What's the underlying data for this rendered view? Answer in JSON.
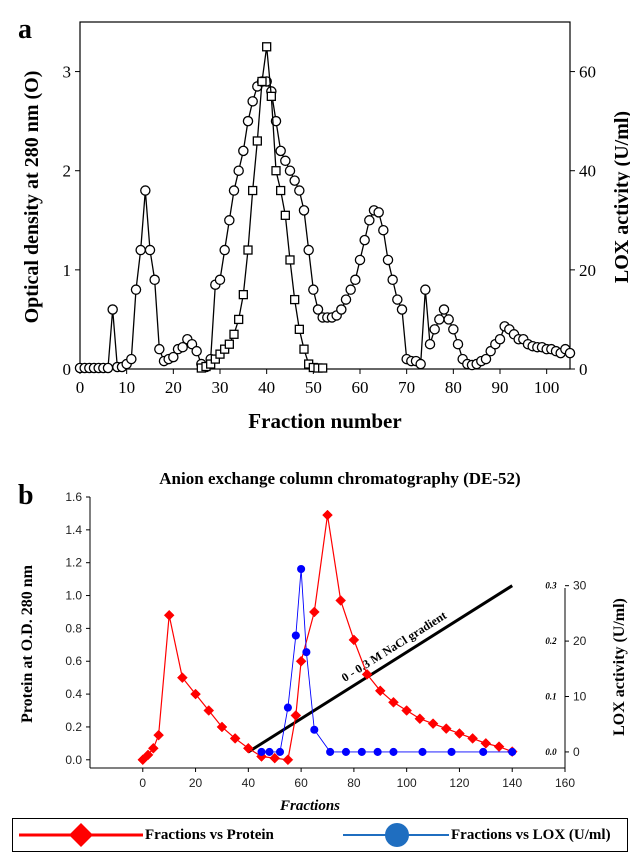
{
  "chart_data": [
    {
      "panel_label": "a",
      "type": "line",
      "xlabel": "Fraction number",
      "ylabel": "Optical density at 280 nm (O)",
      "y2label": "LOX activity (U/ml)",
      "xlim": [
        0,
        105
      ],
      "ylim": [
        0,
        3.5
      ],
      "y2lim": [
        0,
        70
      ],
      "x_ticks": [
        0,
        10,
        20,
        30,
        40,
        50,
        60,
        70,
        80,
        90,
        100
      ],
      "y_ticks": [
        0,
        1,
        2,
        3
      ],
      "y2_ticks": [
        0,
        20,
        40,
        60
      ],
      "series": [
        {
          "axis": "left",
          "marker": "circle",
          "color": "#000000",
          "points": [
            [
              0,
              0.01
            ],
            [
              1,
              0.01
            ],
            [
              2,
              0.01
            ],
            [
              3,
              0.01
            ],
            [
              4,
              0.01
            ],
            [
              5,
              0.01
            ],
            [
              6,
              0.01
            ],
            [
              7,
              0.6
            ],
            [
              8,
              0.02
            ],
            [
              9,
              0.02
            ],
            [
              10,
              0.05
            ],
            [
              11,
              0.1
            ],
            [
              12,
              0.8
            ],
            [
              13,
              1.2
            ],
            [
              14,
              1.8
            ],
            [
              15,
              1.2
            ],
            [
              16,
              0.9
            ],
            [
              17,
              0.2
            ],
            [
              18,
              0.08
            ],
            [
              19,
              0.1
            ],
            [
              20,
              0.12
            ],
            [
              21,
              0.2
            ],
            [
              22,
              0.22
            ],
            [
              23,
              0.3
            ],
            [
              24,
              0.25
            ],
            [
              25,
              0.18
            ],
            [
              26,
              0.05
            ],
            [
              27,
              0.02
            ],
            [
              28,
              0.1
            ],
            [
              29,
              0.85
            ],
            [
              30,
              0.9
            ],
            [
              31,
              1.2
            ],
            [
              32,
              1.5
            ],
            [
              33,
              1.8
            ],
            [
              34,
              2.0
            ],
            [
              35,
              2.2
            ],
            [
              36,
              2.5
            ],
            [
              37,
              2.7
            ],
            [
              38,
              2.85
            ],
            [
              39,
              2.9
            ],
            [
              40,
              2.9
            ],
            [
              41,
              2.8
            ],
            [
              42,
              2.5
            ],
            [
              43,
              2.2
            ],
            [
              44,
              2.1
            ],
            [
              45,
              2.0
            ],
            [
              46,
              1.9
            ],
            [
              47,
              1.8
            ],
            [
              48,
              1.6
            ],
            [
              49,
              1.2
            ],
            [
              50,
              0.8
            ],
            [
              51,
              0.6
            ],
            [
              52,
              0.52
            ],
            [
              53,
              0.52
            ],
            [
              54,
              0.52
            ],
            [
              55,
              0.54
            ],
            [
              56,
              0.6
            ],
            [
              57,
              0.7
            ],
            [
              58,
              0.8
            ],
            [
              59,
              0.9
            ],
            [
              60,
              1.1
            ],
            [
              61,
              1.3
            ],
            [
              62,
              1.5
            ],
            [
              63,
              1.6
            ],
            [
              64,
              1.58
            ],
            [
              65,
              1.4
            ],
            [
              66,
              1.1
            ],
            [
              67,
              0.9
            ],
            [
              68,
              0.7
            ],
            [
              69,
              0.6
            ],
            [
              70,
              0.1
            ],
            [
              71,
              0.08
            ],
            [
              72,
              0.08
            ],
            [
              73,
              0.05
            ],
            [
              74,
              0.8
            ],
            [
              75,
              0.25
            ],
            [
              76,
              0.4
            ],
            [
              77,
              0.5
            ],
            [
              78,
              0.6
            ],
            [
              79,
              0.5
            ],
            [
              80,
              0.4
            ],
            [
              81,
              0.25
            ],
            [
              82,
              0.1
            ],
            [
              83,
              0.05
            ],
            [
              84,
              0.04
            ],
            [
              85,
              0.05
            ],
            [
              86,
              0.08
            ],
            [
              87,
              0.1
            ],
            [
              88,
              0.18
            ],
            [
              89,
              0.25
            ],
            [
              90,
              0.3
            ],
            [
              91,
              0.43
            ],
            [
              92,
              0.4
            ],
            [
              93,
              0.35
            ],
            [
              94,
              0.3
            ],
            [
              95,
              0.3
            ],
            [
              96,
              0.25
            ],
            [
              97,
              0.23
            ],
            [
              98,
              0.22
            ],
            [
              99,
              0.22
            ],
            [
              100,
              0.2
            ],
            [
              101,
              0.2
            ],
            [
              102,
              0.18
            ],
            [
              103,
              0.16
            ],
            [
              104,
              0.2
            ],
            [
              105,
              0.16
            ]
          ]
        },
        {
          "axis": "right",
          "marker": "square",
          "color": "#000000",
          "points": [
            [
              26,
              0.2
            ],
            [
              27,
              0.5
            ],
            [
              28,
              1
            ],
            [
              29,
              2
            ],
            [
              30,
              3
            ],
            [
              31,
              4
            ],
            [
              32,
              5
            ],
            [
              33,
              7
            ],
            [
              34,
              10
            ],
            [
              35,
              15
            ],
            [
              36,
              24
            ],
            [
              37,
              36
            ],
            [
              38,
              46
            ],
            [
              39,
              58
            ],
            [
              40,
              65
            ],
            [
              41,
              55
            ],
            [
              42,
              40
            ],
            [
              43,
              36
            ],
            [
              44,
              31
            ],
            [
              45,
              22
            ],
            [
              46,
              14
            ],
            [
              47,
              8
            ],
            [
              48,
              4
            ],
            [
              49,
              1
            ],
            [
              50,
              0.3
            ],
            [
              51,
              0.2
            ],
            [
              52,
              0.2
            ]
          ]
        }
      ]
    },
    {
      "panel_label": "b",
      "type": "line",
      "title": "Anion exchange column chromatography (DE-52)",
      "xlabel": "Fractions",
      "ylabel": "Protein at O.D. 280 nm",
      "y2label": "LOX activity (U/ml)",
      "xlim": [
        -20,
        160
      ],
      "ylim": [
        -0.05,
        1.6
      ],
      "y2lim": [
        -2.9,
        46
      ],
      "x_ticks": [
        0,
        20,
        40,
        60,
        80,
        100,
        120,
        140,
        160
      ],
      "y_ticks": [
        0.0,
        0.2,
        0.4,
        0.6,
        0.8,
        1.0,
        1.2,
        1.4,
        1.6
      ],
      "y2_ticks": [
        0,
        10,
        20,
        30
      ],
      "y3_ticks": [
        "0.0",
        "0.1",
        "0.2",
        "0.3"
      ],
      "gradient_label": "0 - 0.3 M NaCl gradient",
      "gradient_line": [
        [
          40,
          0.0
        ],
        [
          140,
          0.3
        ]
      ],
      "series": [
        {
          "name": "Fractions vs Protein",
          "axis": "left",
          "marker": "diamond",
          "color": "#ff0000",
          "x": [
            0,
            2,
            4,
            6,
            10,
            15,
            20,
            25,
            30,
            35,
            40,
            45,
            50,
            55,
            58,
            60,
            65,
            70,
            75,
            80,
            85,
            90,
            95,
            100,
            105,
            110,
            115,
            120,
            125,
            130,
            135,
            140
          ],
          "y": [
            0.0,
            0.03,
            0.07,
            0.15,
            0.88,
            0.5,
            0.4,
            0.3,
            0.2,
            0.13,
            0.07,
            0.02,
            0.01,
            0.0,
            0.27,
            0.6,
            0.9,
            1.49,
            0.97,
            0.73,
            0.52,
            0.42,
            0.35,
            0.3,
            0.25,
            0.22,
            0.19,
            0.16,
            0.13,
            0.1,
            0.08,
            0.05
          ]
        },
        {
          "name": "Fractions vs LOX (U/ml)",
          "axis": "right",
          "marker": "circle",
          "color": "#0000ff",
          "x": [
            45,
            48,
            52,
            55,
            58,
            60,
            62,
            65,
            71,
            77,
            83,
            89,
            95,
            106,
            117,
            129,
            140
          ],
          "y": [
            0,
            0,
            0,
            8,
            21,
            33,
            18,
            4,
            0,
            0,
            0,
            0,
            0,
            0,
            0,
            0,
            0
          ]
        }
      ]
    }
  ],
  "legend": [
    {
      "label": "Fractions vs Protein",
      "color": "#ff0000",
      "marker": "diamond"
    },
    {
      "label": "Fractions vs LOX (U/ml)",
      "color": "#1f6ec0",
      "marker": "circle"
    }
  ]
}
